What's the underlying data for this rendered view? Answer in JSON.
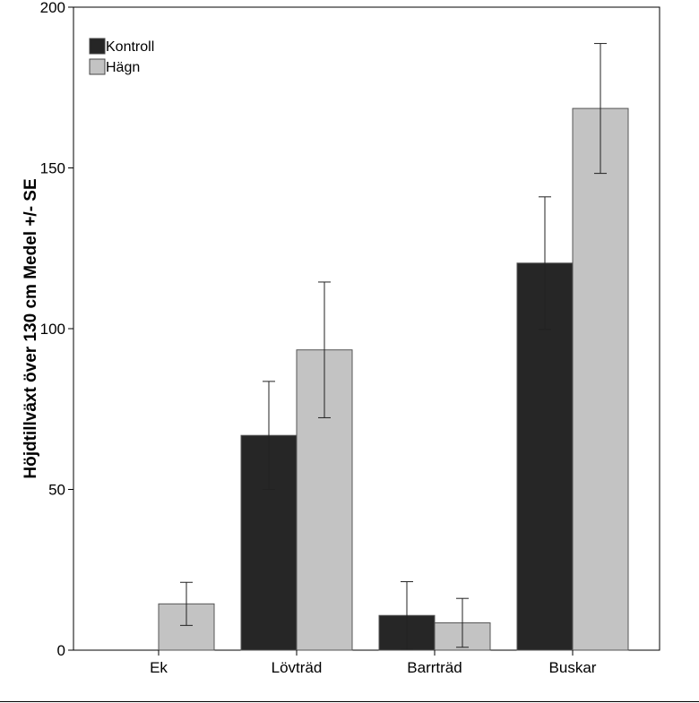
{
  "chart_data": {
    "type": "bar",
    "title": "",
    "xlabel": "",
    "ylabel": "Höjdtillväxt över 130 cm Medel +/- SE",
    "ylim": [
      0,
      200
    ],
    "yticks": [
      0,
      50,
      100,
      150,
      200
    ],
    "categories": [
      "Ek",
      "Lövträd",
      "Barrträd",
      "Buskar"
    ],
    "series": [
      {
        "name": "Kontroll",
        "color": "#262626",
        "values": [
          0,
          66.8,
          10.8,
          120.4
        ],
        "se": [
          0,
          16.8,
          10.5,
          20.6
        ]
      },
      {
        "name": "Hägn",
        "color": "#c3c3c3",
        "values": [
          14.4,
          93.4,
          8.5,
          168.5
        ],
        "se": [
          6.7,
          21.1,
          7.6,
          20.2
        ]
      }
    ],
    "legend": "top-left",
    "grid": false
  }
}
